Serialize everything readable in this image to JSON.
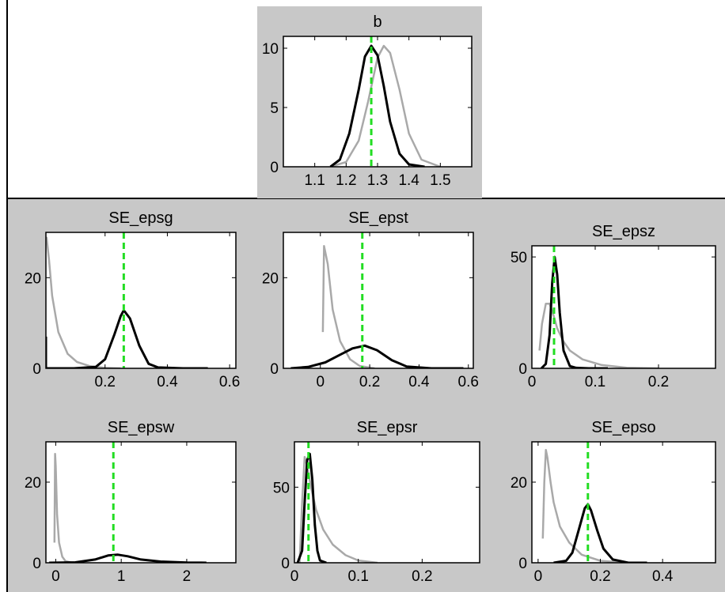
{
  "colors": {
    "panel_bg": "#c8c8c8",
    "axes_bg": "#ffffff",
    "prior": "#a9a9a9",
    "posterior": "#000000",
    "mode": "#22dd22",
    "frame": "#000000"
  },
  "chart_data": [
    {
      "title": "b",
      "type": "line",
      "xlim": [
        1.0,
        1.6
      ],
      "ylim": [
        0,
        11
      ],
      "xticks": [
        1.1,
        1.2,
        1.3,
        1.4,
        1.5
      ],
      "xtick_labels": [
        "1.1",
        "1.2",
        "1.3",
        "1.4",
        "1.5"
      ],
      "yticks": [
        0,
        5,
        10
      ],
      "ytick_labels": [
        "0",
        "5",
        "10"
      ],
      "mode_x": 1.28,
      "series": [
        {
          "role": "prior",
          "x": [
            1.15,
            1.2,
            1.24,
            1.27,
            1.3,
            1.32,
            1.34,
            1.37,
            1.4,
            1.44,
            1.5
          ],
          "y": [
            0,
            0.4,
            2.2,
            5.5,
            9.2,
            10.2,
            9.6,
            6.5,
            2.8,
            0.6,
            0
          ]
        },
        {
          "role": "posterior",
          "x": [
            1.15,
            1.18,
            1.21,
            1.24,
            1.26,
            1.28,
            1.3,
            1.32,
            1.34,
            1.37,
            1.4,
            1.45
          ],
          "y": [
            0,
            0.6,
            2.8,
            6.5,
            9.3,
            10.2,
            9.4,
            6.8,
            3.8,
            1.1,
            0.2,
            0
          ]
        }
      ]
    },
    {
      "title": "SE_epsg",
      "type": "line",
      "xlim": [
        0.01,
        0.62
      ],
      "ylim": [
        0,
        30
      ],
      "xticks": [
        0.2,
        0.4,
        0.6
      ],
      "xtick_labels": [
        "0.2",
        "0.4",
        "0.6"
      ],
      "yticks": [
        0,
        20
      ],
      "ytick_labels": [
        "0",
        "20"
      ],
      "mode_x": 0.26,
      "series": [
        {
          "role": "prior",
          "x": [
            0.012,
            0.02,
            0.03,
            0.05,
            0.08,
            0.11,
            0.15,
            0.2,
            0.25
          ],
          "y": [
            29,
            24,
            16,
            8,
            3.2,
            1.4,
            0.5,
            0.1,
            0
          ]
        },
        {
          "role": "posterior",
          "x": [
            0.01,
            0.01,
            0.02,
            0.1,
            0.17,
            0.2,
            0.23,
            0.25,
            0.26,
            0.28,
            0.31,
            0.34,
            0.37,
            0.45,
            0.53
          ],
          "y": [
            7,
            0,
            0,
            0,
            0.3,
            2,
            7.5,
            11.5,
            12.8,
            11,
            5,
            1,
            0.2,
            0,
            0
          ]
        }
      ]
    },
    {
      "title": "SE_epst",
      "type": "line",
      "xlim": [
        -0.15,
        0.62
      ],
      "ylim": [
        0,
        30
      ],
      "xticks": [
        0,
        0.2,
        0.4,
        0.6
      ],
      "xtick_labels": [
        "0",
        "0.2",
        "0.4",
        "0.6"
      ],
      "yticks": [
        0,
        20
      ],
      "ytick_labels": [
        "0",
        "20"
      ],
      "mode_x": 0.17,
      "series": [
        {
          "role": "prior",
          "x": [
            0.01,
            0.015,
            0.03,
            0.05,
            0.08,
            0.12,
            0.16,
            0.22
          ],
          "y": [
            8,
            27,
            23,
            13,
            6,
            2,
            0.5,
            0
          ]
        },
        {
          "role": "posterior",
          "x": [
            -0.12,
            -0.05,
            0.02,
            0.08,
            0.13,
            0.18,
            0.23,
            0.29,
            0.35,
            0.45,
            0.58
          ],
          "y": [
            0,
            0.3,
            1.3,
            3,
            4.4,
            5,
            4,
            1.8,
            0.4,
            0,
            0
          ]
        }
      ]
    },
    {
      "title": "SE_epsz",
      "type": "line",
      "xlim": [
        0,
        0.29
      ],
      "ylim": [
        0,
        55
      ],
      "xticks": [
        0,
        0.1,
        0.2
      ],
      "xtick_labels": [
        "0",
        "0.1",
        "0.2"
      ],
      "yticks": [
        0,
        50
      ],
      "ytick_labels": [
        "0",
        "50"
      ],
      "mode_x": 0.035,
      "series": [
        {
          "role": "prior",
          "x": [
            0.012,
            0.016,
            0.022,
            0.028,
            0.034,
            0.04,
            0.05,
            0.06,
            0.08,
            0.11,
            0.15,
            0.2
          ],
          "y": [
            8,
            20,
            29,
            29,
            24,
            18,
            12,
            8,
            4,
            1.5,
            0.3,
            0
          ]
        },
        {
          "role": "posterior",
          "x": [
            0.015,
            0.022,
            0.028,
            0.032,
            0.036,
            0.04,
            0.044,
            0.05,
            0.06,
            0.07,
            0.09,
            0.12
          ],
          "y": [
            0,
            2,
            15,
            38,
            50,
            42,
            25,
            8,
            1,
            0.2,
            0,
            0
          ]
        }
      ]
    },
    {
      "title": "SE_epsw",
      "type": "line",
      "xlim": [
        -0.15,
        2.75
      ],
      "ylim": [
        0,
        30
      ],
      "xticks": [
        0,
        1,
        2
      ],
      "xtick_labels": [
        "0",
        "1",
        "2"
      ],
      "yticks": [
        0,
        20
      ],
      "ytick_labels": [
        "0",
        "20"
      ],
      "mode_x": 0.88,
      "series": [
        {
          "role": "prior",
          "x": [
            -0.02,
            -0.01,
            0.0,
            0.02,
            0.05,
            0.1,
            0.15,
            0.25
          ],
          "y": [
            5,
            27,
            24,
            12,
            5,
            1.5,
            0.4,
            0
          ]
        },
        {
          "role": "posterior",
          "x": [
            -0.1,
            0.3,
            0.6,
            0.8,
            0.95,
            1.1,
            1.3,
            1.6,
            2.0,
            2.3
          ],
          "y": [
            0,
            0.1,
            0.8,
            1.8,
            2.0,
            1.6,
            0.8,
            0.3,
            0.05,
            0
          ]
        }
      ]
    },
    {
      "title": "SE_epsr",
      "type": "line",
      "xlim": [
        0,
        0.29
      ],
      "ylim": [
        0,
        80
      ],
      "xticks": [
        0,
        0.1,
        0.2
      ],
      "xtick_labels": [
        "0",
        "0.1",
        "0.2"
      ],
      "yticks": [
        0,
        50
      ],
      "ytick_labels": [
        "0",
        "50"
      ],
      "mode_x": 0.022,
      "series": [
        {
          "role": "prior",
          "x": [
            0.008,
            0.012,
            0.016,
            0.02,
            0.026,
            0.034,
            0.045,
            0.06,
            0.08,
            0.1,
            0.13
          ],
          "y": [
            0,
            40,
            70,
            64,
            50,
            35,
            22,
            12,
            5,
            1.5,
            0
          ]
        },
        {
          "role": "posterior",
          "x": [
            0.005,
            0.012,
            0.016,
            0.02,
            0.024,
            0.028,
            0.032,
            0.036,
            0.04,
            0.05
          ],
          "y": [
            0,
            8,
            40,
            68,
            72,
            55,
            25,
            8,
            1.5,
            0
          ]
        }
      ]
    },
    {
      "title": "SE_epso",
      "type": "line",
      "xlim": [
        -0.02,
        0.57
      ],
      "ylim": [
        0,
        30
      ],
      "xticks": [
        0,
        0.2,
        0.4
      ],
      "xtick_labels": [
        "0",
        "0.2",
        "0.4"
      ],
      "yticks": [
        0,
        20
      ],
      "ytick_labels": [
        "0",
        "20"
      ],
      "mode_x": 0.16,
      "series": [
        {
          "role": "prior",
          "x": [
            0.015,
            0.02,
            0.025,
            0.03,
            0.04,
            0.05,
            0.07,
            0.1,
            0.14,
            0.2,
            0.28
          ],
          "y": [
            6,
            20,
            28,
            26,
            20,
            15,
            9,
            5,
            2,
            0.5,
            0
          ]
        },
        {
          "role": "posterior",
          "x": [
            0.05,
            0.09,
            0.11,
            0.13,
            0.15,
            0.16,
            0.17,
            0.19,
            0.21,
            0.24,
            0.29,
            0.35
          ],
          "y": [
            0,
            0.5,
            2.5,
            8,
            13.5,
            14.5,
            13,
            8,
            3.5,
            0.8,
            0,
            0
          ]
        }
      ]
    }
  ]
}
